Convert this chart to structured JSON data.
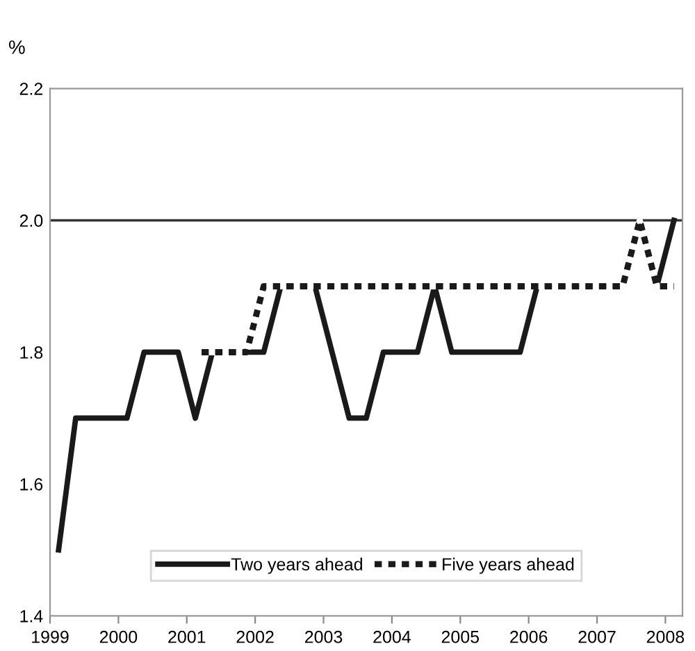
{
  "chart_data": {
    "type": "line",
    "ylabel": "%",
    "x": [
      1999.125,
      1999.375,
      1999.625,
      1999.875,
      2000.125,
      2000.375,
      2000.625,
      2000.875,
      2001.125,
      2001.375,
      2001.625,
      2001.875,
      2002.125,
      2002.375,
      2002.625,
      2002.875,
      2003.125,
      2003.375,
      2003.625,
      2003.875,
      2004.125,
      2004.375,
      2004.625,
      2004.875,
      2005.125,
      2005.375,
      2005.625,
      2005.875,
      2006.125,
      2006.375,
      2006.625,
      2006.875,
      2007.125,
      2007.375,
      2007.625,
      2007.875,
      2008.125
    ],
    "series": [
      {
        "name": "Two years ahead",
        "color": "#1a1a1a",
        "line_style": "solid",
        "values": [
          1.5,
          1.7,
          1.7,
          1.7,
          1.7,
          1.8,
          1.8,
          1.8,
          1.7,
          1.8,
          1.8,
          1.8,
          1.8,
          1.9,
          1.9,
          1.9,
          1.8,
          1.7,
          1.7,
          1.8,
          1.8,
          1.8,
          1.9,
          1.8,
          1.8,
          1.8,
          1.8,
          1.8,
          1.9,
          1.9,
          1.9,
          1.9,
          1.9,
          1.9,
          2.0,
          1.9,
          2.0
        ]
      },
      {
        "name": "Five years ahead",
        "color": "#1a1a1a",
        "line_style": "dotted",
        "values": [
          null,
          null,
          null,
          null,
          null,
          null,
          null,
          null,
          1.8,
          1.8,
          1.8,
          1.8,
          1.9,
          1.9,
          1.9,
          1.9,
          1.9,
          1.9,
          1.9,
          1.9,
          1.9,
          1.9,
          1.9,
          1.9,
          1.9,
          1.9,
          1.9,
          1.9,
          1.9,
          1.9,
          1.9,
          1.9,
          1.9,
          1.9,
          2.0,
          1.9,
          1.9
        ]
      }
    ],
    "xlim": [
      1999,
      2008.25
    ],
    "xticks": [
      1999,
      2000,
      2001,
      2002,
      2003,
      2004,
      2005,
      2006,
      2007,
      2008
    ],
    "ylim": [
      1.4,
      2.2
    ],
    "yticks": [
      {
        "value": 1.4,
        "label": "1.4"
      },
      {
        "value": 1.6,
        "label": "1.6"
      },
      {
        "value": 1.8,
        "label": "1.8"
      },
      {
        "value": 2.0,
        "label": "2.0"
      },
      {
        "value": 2.2,
        "label": "2.2"
      }
    ],
    "ref_lines": [
      {
        "axis": "y",
        "value": 2.0,
        "color": "#333333"
      }
    ],
    "grid": false,
    "legend": "bottom"
  }
}
